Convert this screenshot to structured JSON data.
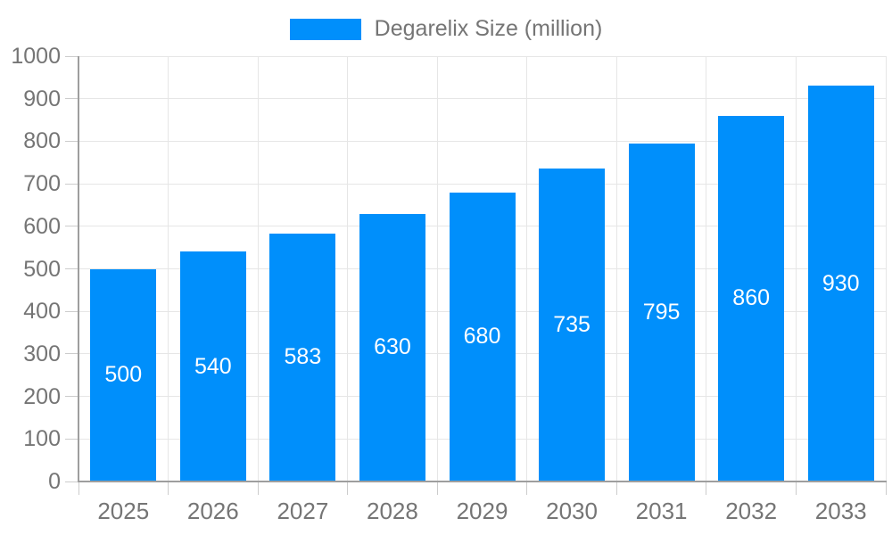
{
  "legend": {
    "label": "Degarelix Size (million)"
  },
  "chart_data": {
    "type": "bar",
    "title": "Degarelix Size (million)",
    "categories": [
      "2025",
      "2026",
      "2027",
      "2028",
      "2029",
      "2030",
      "2031",
      "2032",
      "2033"
    ],
    "values": [
      500,
      540,
      583,
      630,
      680,
      735,
      795,
      860,
      930
    ],
    "series": [
      {
        "name": "Degarelix Size (million)",
        "values": [
          500,
          540,
          583,
          630,
          680,
          735,
          795,
          860,
          930
        ]
      }
    ],
    "xlabel": "",
    "ylabel": "",
    "ylim": [
      0,
      1000
    ],
    "yticks": [
      0,
      100,
      200,
      300,
      400,
      500,
      600,
      700,
      800,
      900,
      1000
    ],
    "grid": true,
    "legend_position": "top",
    "data_labels": "inside-center",
    "colors": {
      "bar": "#008FFB",
      "bar_label": "#FFFFFF",
      "axis_text": "#757575",
      "grid_line": "#E6E6E6",
      "tick_line": "#CCCCCC",
      "axis_line": "#9E9E9E",
      "background": "#FFFFFF"
    }
  }
}
